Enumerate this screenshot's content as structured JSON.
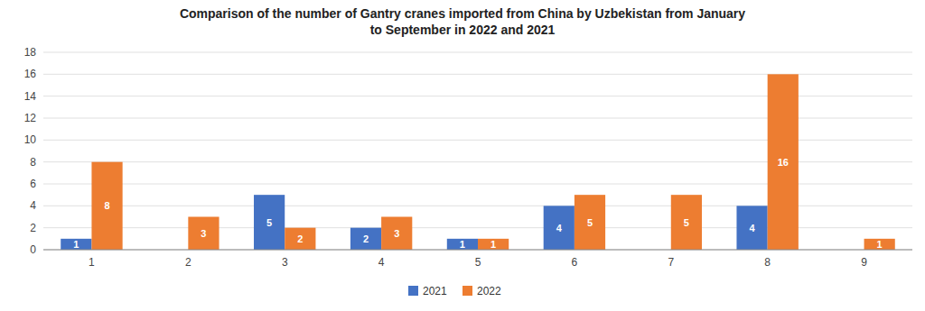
{
  "chart_data": {
    "type": "bar",
    "title": "Comparison of the number of Gantry cranes imported from China by Uzbekistan from January\nto September in 2022 and 2021",
    "categories": [
      1,
      2,
      3,
      4,
      5,
      6,
      7,
      8,
      9
    ],
    "series": [
      {
        "name": "2021",
        "color": "#4472C4",
        "values": [
          1,
          0,
          5,
          2,
          1,
          4,
          0,
          4,
          0
        ]
      },
      {
        "name": "2022",
        "color": "#ED7D31",
        "values": [
          8,
          3,
          2,
          3,
          1,
          5,
          5,
          16,
          1
        ]
      }
    ],
    "ylim": [
      0,
      18
    ],
    "yticks": [
      0,
      2,
      4,
      6,
      8,
      10,
      12,
      14,
      16,
      18
    ],
    "grid": true,
    "legend": "bottom",
    "data_labels": true
  }
}
